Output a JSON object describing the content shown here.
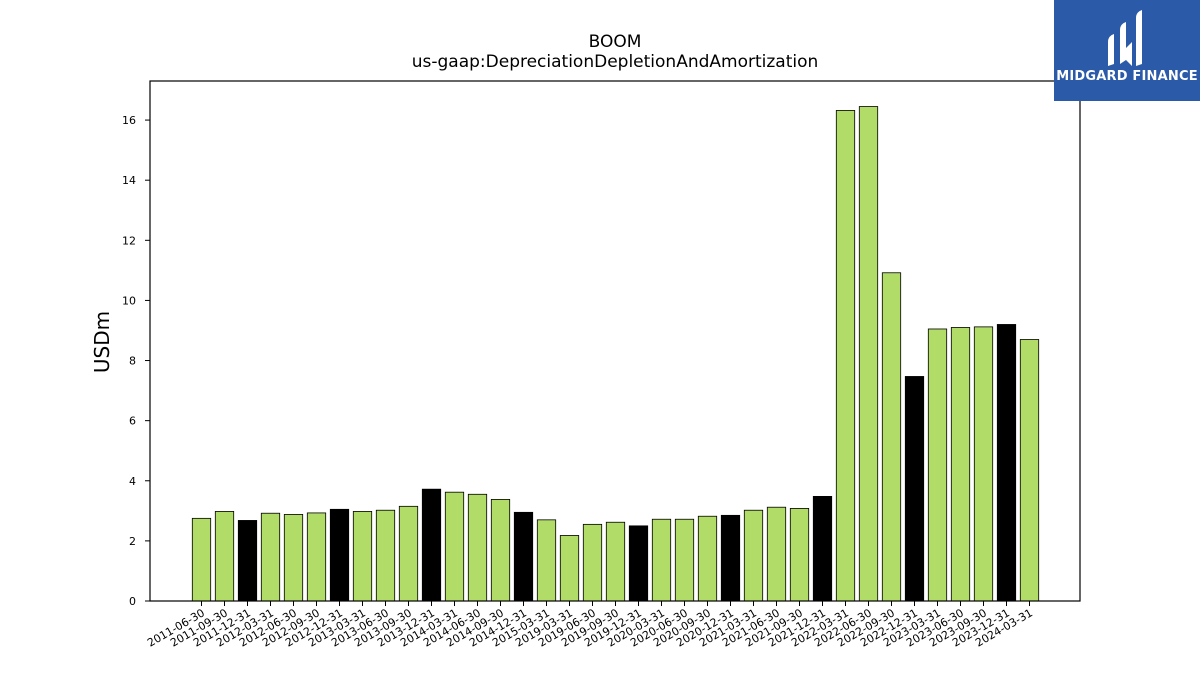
{
  "chart_data": {
    "type": "bar",
    "title": "BOOM",
    "subtitle": "us-gaap:DepreciationDepletionAndAmortization",
    "ylabel": "USDm",
    "ylim": [
      0,
      17.3
    ],
    "yticks": [
      0,
      2,
      4,
      6,
      8,
      10,
      12,
      14,
      16
    ],
    "categories": [
      "2011-06-30",
      "2011-09-30",
      "2011-12-31",
      "2012-03-31",
      "2012-06-30",
      "2012-09-30",
      "2012-12-31",
      "2013-03-31",
      "2013-06-30",
      "2013-09-30",
      "2013-12-31",
      "2014-03-31",
      "2014-06-30",
      "2014-09-30",
      "2014-12-31",
      "2015-03-31",
      "2019-03-31",
      "2019-06-30",
      "2019-09-30",
      "2019-12-31",
      "2020-03-31",
      "2020-06-30",
      "2020-09-30",
      "2020-12-31",
      "2021-03-31",
      "2021-06-30",
      "2021-09-30",
      "2021-12-31",
      "2022-03-31",
      "2022-06-30",
      "2022-09-30",
      "2022-12-31",
      "2023-03-31",
      "2023-06-30",
      "2023-09-30",
      "2023-12-31",
      "2024-03-31"
    ],
    "values": [
      2.75,
      2.98,
      2.68,
      2.92,
      2.88,
      2.93,
      3.05,
      2.98,
      3.02,
      3.15,
      3.72,
      3.62,
      3.55,
      3.38,
      2.95,
      2.7,
      2.18,
      2.55,
      2.62,
      2.5,
      2.72,
      2.72,
      2.82,
      2.85,
      3.02,
      3.12,
      3.08,
      3.48,
      16.32,
      16.45,
      10.92,
      7.47,
      9.05,
      9.1,
      9.12,
      9.2,
      8.7
    ],
    "quarter_end_year": [
      false,
      false,
      true,
      false,
      false,
      false,
      true,
      false,
      false,
      false,
      true,
      false,
      false,
      false,
      true,
      false,
      false,
      false,
      false,
      true,
      false,
      false,
      false,
      true,
      false,
      false,
      false,
      true,
      false,
      false,
      false,
      true,
      false,
      false,
      false,
      true,
      false
    ],
    "colors": {
      "bar": "#b2dc68",
      "year_end_bar": "#000000",
      "edge": "#000000"
    },
    "grid": false
  },
  "logo": {
    "text": "MIDGARD FINANCE",
    "background": "#2a5aa8"
  }
}
